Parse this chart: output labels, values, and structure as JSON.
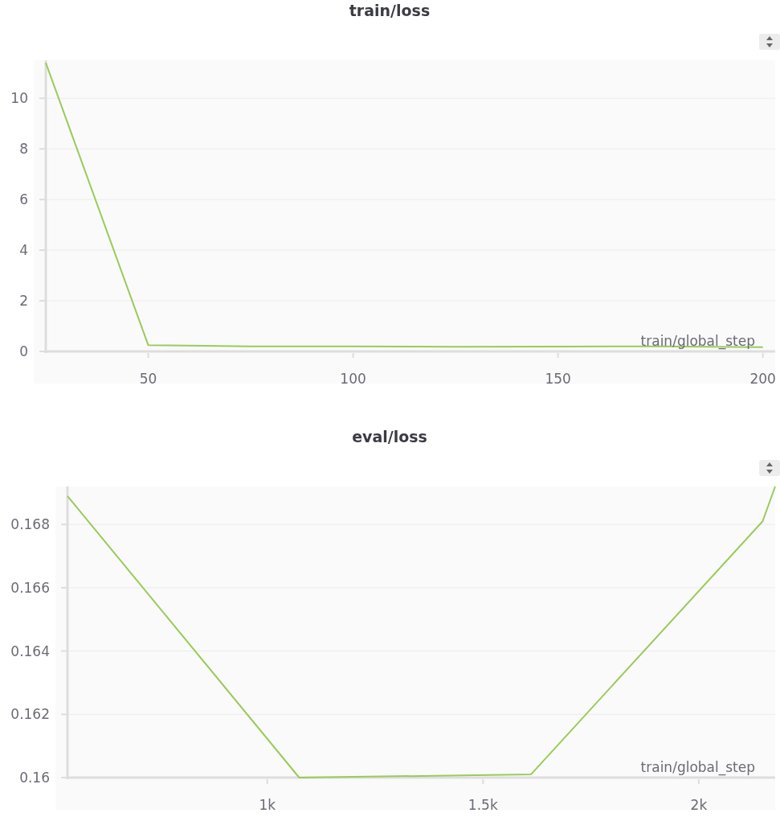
{
  "chart_data": [
    {
      "type": "line",
      "title": "train/loss",
      "xlabel": "train/global_step",
      "x": [
        25,
        50,
        75,
        100,
        125,
        150,
        175,
        200
      ],
      "series": [
        {
          "color": "#9acb5a",
          "values": [
            11.4,
            0.25,
            0.2,
            0.2,
            0.18,
            0.19,
            0.2,
            0.17
          ]
        }
      ],
      "xlim": [
        25,
        203
      ],
      "xticks": [
        50,
        100,
        150,
        200
      ],
      "ylim": [
        0,
        11.5
      ],
      "yticks": [
        0,
        2,
        4,
        6,
        8,
        10
      ],
      "grid": "y"
    },
    {
      "type": "line",
      "title": "eval/loss",
      "xlabel": "train/global_step",
      "x": [
        537,
        1074,
        1611,
        2148,
        2177
      ],
      "series": [
        {
          "color": "#9acb5a",
          "values": [
            0.1689,
            0.16,
            0.1601,
            0.1681,
            0.1692
          ]
        }
      ],
      "xlim": [
        537,
        2177
      ],
      "xticks": [
        {
          "value": 1000,
          "label": "1k"
        },
        {
          "value": 1500,
          "label": "1.5k"
        },
        {
          "value": 2000,
          "label": "2k"
        }
      ],
      "ylim": [
        0.16,
        0.1692
      ],
      "yticks": [
        0.16,
        0.162,
        0.164,
        0.166,
        0.168
      ],
      "grid": "y"
    }
  ]
}
